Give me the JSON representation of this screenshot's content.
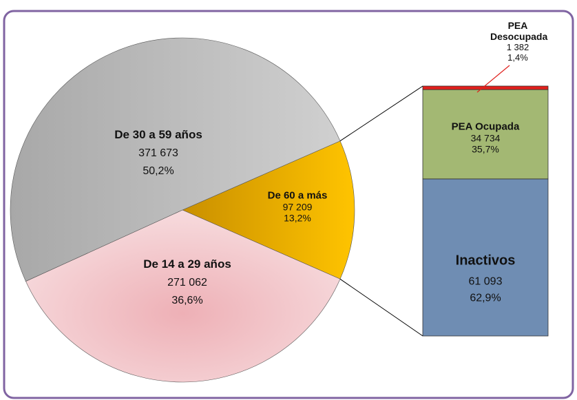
{
  "chart_data": [
    {
      "type": "pie",
      "categories": [
        "De 60 a más",
        "De 14 a 29 años",
        "De 30 a 59 años"
      ],
      "values": [
        97209,
        271062,
        371673
      ],
      "value_labels": [
        "97 209",
        "271 062",
        "371 673"
      ],
      "percents": [
        13.2,
        36.6,
        50.2
      ],
      "percent_labels": [
        "13,2%",
        "36,6%",
        "50,2%"
      ],
      "colors": [
        "#e6a800",
        "#f2c4c8",
        "#bdbdbd"
      ]
    },
    {
      "type": "stacked-bar",
      "categories": [
        "Inactivos",
        "PEA Ocupada",
        "PEA Desocupada"
      ],
      "values": [
        61093,
        34734,
        1382
      ],
      "value_labels": [
        "61 093",
        "34 734",
        "1 382"
      ],
      "percents": [
        62.9,
        35.7,
        1.4
      ],
      "percent_labels": [
        "62,9%",
        "35,7%",
        "1,4%"
      ],
      "colors": [
        "#6f8db3",
        "#a3b873",
        "#e0201c"
      ]
    }
  ]
}
